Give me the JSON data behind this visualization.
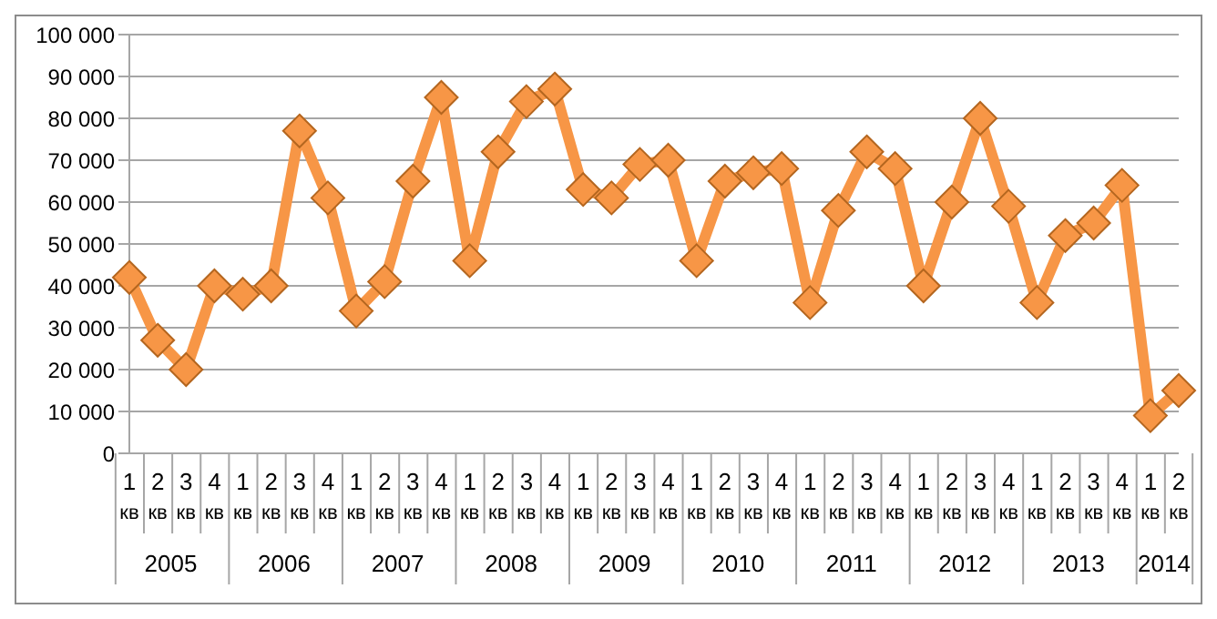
{
  "chart_data": {
    "type": "line",
    "categories": [
      "1 кв",
      "2 кв",
      "3 кв",
      "4 кв",
      "1 кв",
      "2 кв",
      "3 кв",
      "4 кв",
      "1 кв",
      "2 кв",
      "3 кв",
      "4 кв",
      "1 кв",
      "2 кв",
      "3 кв",
      "4 кв",
      "1 кв",
      "2 кв",
      "3 кв",
      "4 кв",
      "1 кв",
      "2 кв",
      "3 кв",
      "4 кв",
      "1 кв",
      "2 кв",
      "3 кв",
      "4 кв",
      "1 кв",
      "2 кв",
      "3 кв",
      "4 кв",
      "1 кв",
      "2 кв",
      "3 кв",
      "4 кв",
      "1 кв",
      "2 кв"
    ],
    "series": [
      {
        "color": "#f79646",
        "values": [
          42000,
          27000,
          20000,
          40000,
          38000,
          40000,
          77000,
          61000,
          34000,
          41000,
          65000,
          85000,
          46000,
          72000,
          84000,
          87000,
          63000,
          61000,
          69000,
          70000,
          46000,
          65000,
          67000,
          68000,
          36000,
          58000,
          72000,
          68000,
          40000,
          60000,
          80000,
          59000,
          36000,
          52000,
          55000,
          64000,
          9000,
          15000
        ]
      }
    ],
    "annotations": [
      "2005",
      "2006",
      "2007",
      "2008",
      "2009",
      "2010",
      "2011",
      "2012",
      "2013",
      "2014"
    ],
    "ylim": [
      0,
      100000
    ],
    "yticks": [
      0,
      10000,
      20000,
      30000,
      40000,
      50000,
      60000,
      70000,
      80000,
      90000,
      100000
    ],
    "grid": "y",
    "marker": "diamond",
    "line_style": "solid"
  }
}
